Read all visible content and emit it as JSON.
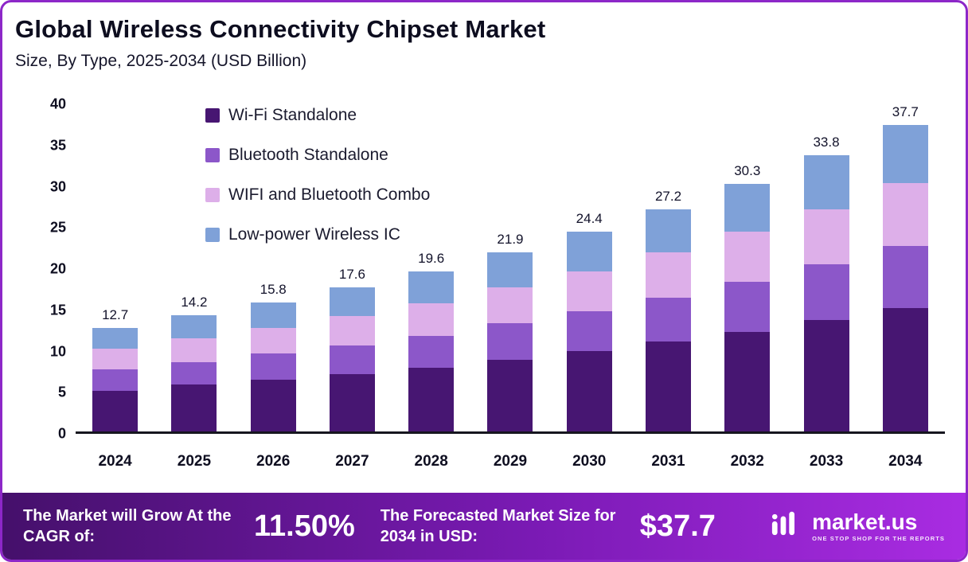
{
  "header": {
    "title": "Global Wireless Connectivity Chipset Market",
    "subtitle": "Size, By Type, 2025-2034 (USD Billion)"
  },
  "chart_data": {
    "type": "bar",
    "stacked": true,
    "title": "Global Wireless Connectivity Chipset Market Size, By Type, 2025-2034 (USD Billion)",
    "categories": [
      "2024",
      "2025",
      "2026",
      "2027",
      "2028",
      "2029",
      "2030",
      "2031",
      "2032",
      "2033",
      "2034"
    ],
    "series": [
      {
        "name": "Wi-Fi Standalone",
        "color": "#471672",
        "values": [
          5.0,
          5.7,
          6.3,
          7.0,
          7.8,
          8.8,
          9.8,
          11.0,
          12.2,
          13.6,
          15.2
        ]
      },
      {
        "name": "Bluetooth Standalone",
        "color": "#8c57c9",
        "values": [
          2.6,
          2.8,
          3.2,
          3.5,
          3.9,
          4.4,
          4.9,
          5.4,
          6.1,
          6.8,
          7.6
        ]
      },
      {
        "name": "WIFI and Bluetooth Combo",
        "color": "#ddafe9",
        "values": [
          2.5,
          2.9,
          3.2,
          3.6,
          4.0,
          4.4,
          4.9,
          5.5,
          6.1,
          6.8,
          7.8
        ]
      },
      {
        "name": "Low-power Wireless IC",
        "color": "#7fa1d8",
        "values": [
          2.6,
          2.8,
          3.1,
          3.5,
          3.9,
          4.3,
          4.8,
          5.3,
          5.9,
          6.6,
          7.1
        ]
      }
    ],
    "totals": [
      12.7,
      14.2,
      15.8,
      17.6,
      19.6,
      21.9,
      24.4,
      27.2,
      30.3,
      33.8,
      37.7
    ],
    "ylim": [
      0,
      40
    ],
    "yticks": [
      0,
      5,
      10,
      15,
      20,
      25,
      30,
      35,
      40
    ],
    "xlabel": "",
    "ylabel": "",
    "grid": false,
    "legend_position": "top-left-inside"
  },
  "footer": {
    "cagr_label": "The Market will Grow At the CAGR of:",
    "cagr_value": "11.50%",
    "forecast_label": "The Forecasted Market Size for 2034 in USD:",
    "forecast_value": "$37.7",
    "brand": "market.us",
    "brand_tagline": "ONE STOP SHOP FOR THE REPORTS"
  },
  "colors": {
    "card_border": "#8d27c8",
    "footer_gradient_left": "#45106b",
    "footer_gradient_right": "#a92ce2",
    "baseline": "#16161f"
  }
}
